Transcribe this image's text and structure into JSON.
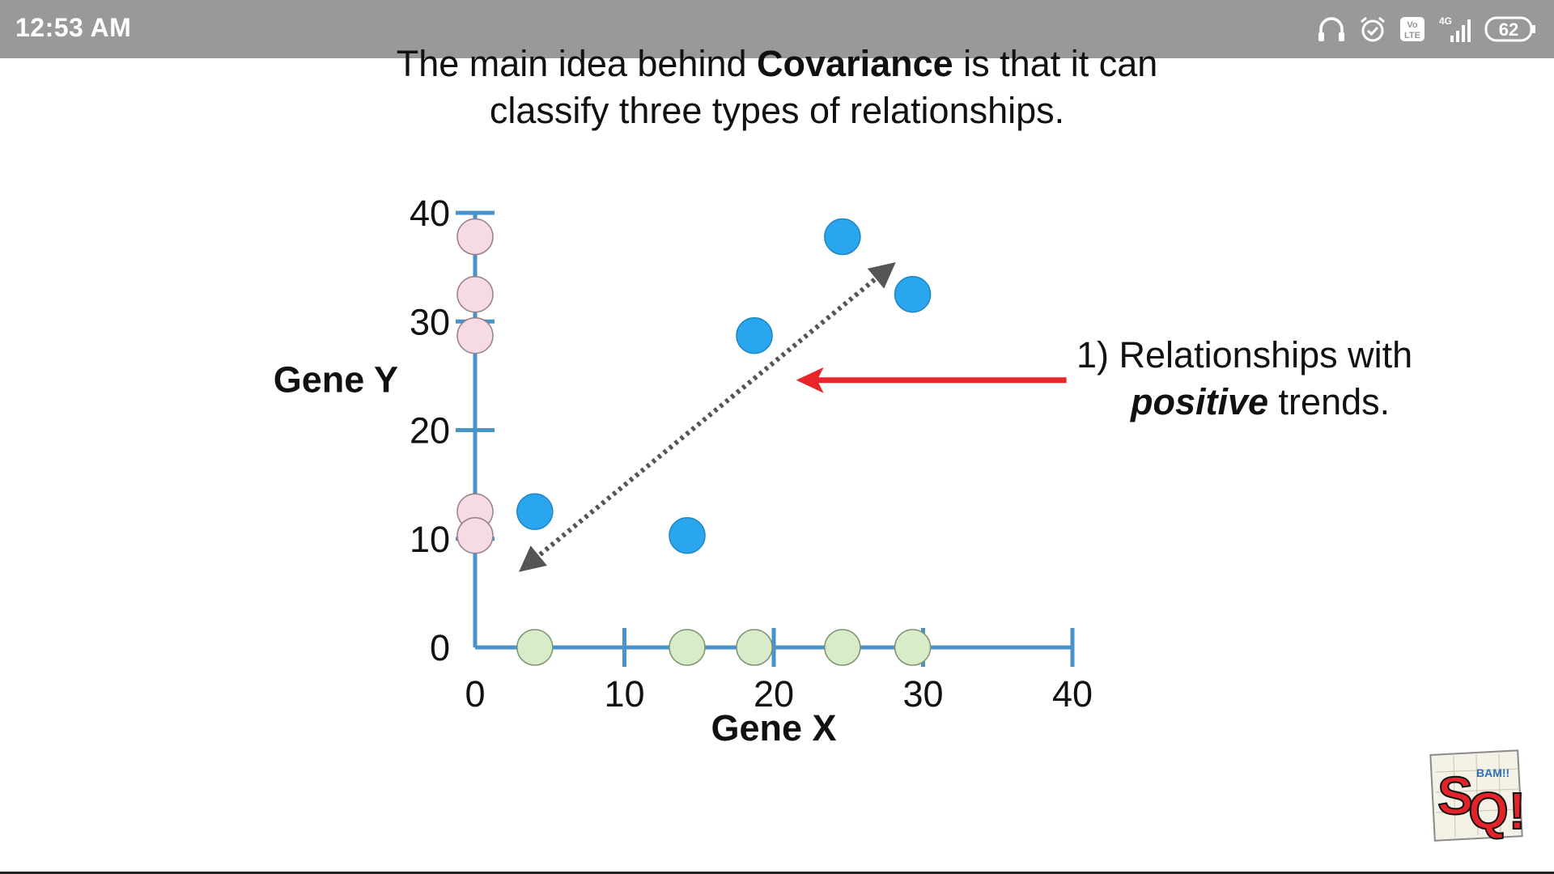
{
  "status_bar": {
    "time": "12:53 AM",
    "network": "4G",
    "volte": "Vo LTE",
    "battery": "62",
    "icons": [
      "headphones-icon",
      "alarm-icon",
      "volte-icon",
      "signal-icon",
      "battery-icon"
    ],
    "background": "#999999"
  },
  "caption": {
    "prefix": "The main idea behind ",
    "keyword": "Covariance",
    "suffix": " is that it can classify three types of relationships."
  },
  "annotation": {
    "line1": "1) Relationships with",
    "emphasis": "positive",
    "line2_rest": " trends."
  },
  "chart_data": {
    "type": "scatter",
    "xlabel": "Gene X",
    "ylabel": "Gene Y",
    "xlim": [
      0,
      40
    ],
    "ylim": [
      0,
      40
    ],
    "x_ticks": [
      0,
      10,
      20,
      30,
      40
    ],
    "y_ticks": [
      0,
      10,
      20,
      30,
      40
    ],
    "grid": false,
    "legend": "none",
    "axis_color": "#4a93c8",
    "series": [
      {
        "color": "#2aa6ee",
        "points": [
          [
            4,
            12.5
          ],
          [
            14.2,
            10.3
          ],
          [
            18.7,
            28.7
          ],
          [
            24.6,
            37.8
          ],
          [
            29.3,
            32.5
          ]
        ]
      },
      {
        "color": "#f6dbe6",
        "points": [
          [
            0,
            37.8
          ],
          [
            0,
            32.5
          ],
          [
            0,
            28.7
          ],
          [
            0,
            12.5
          ],
          [
            0,
            10.3
          ]
        ]
      },
      {
        "color": "#d8ecc9",
        "points": [
          [
            4,
            0
          ],
          [
            14.2,
            0
          ],
          [
            18.7,
            0
          ],
          [
            24.6,
            0
          ],
          [
            29.3,
            0
          ]
        ]
      }
    ],
    "trend_arrow": {
      "from": [
        3.6,
        7.7
      ],
      "to": [
        27.5,
        34.7
      ],
      "style": "dotted",
      "color": "#555555"
    },
    "pointer_arrow": {
      "from": [
        39.6,
        24.6
      ],
      "to": [
        21.5,
        24.6
      ],
      "color": "#e8262a"
    }
  },
  "logo": {
    "letters": "SQ!",
    "sub": "BAM!!"
  }
}
